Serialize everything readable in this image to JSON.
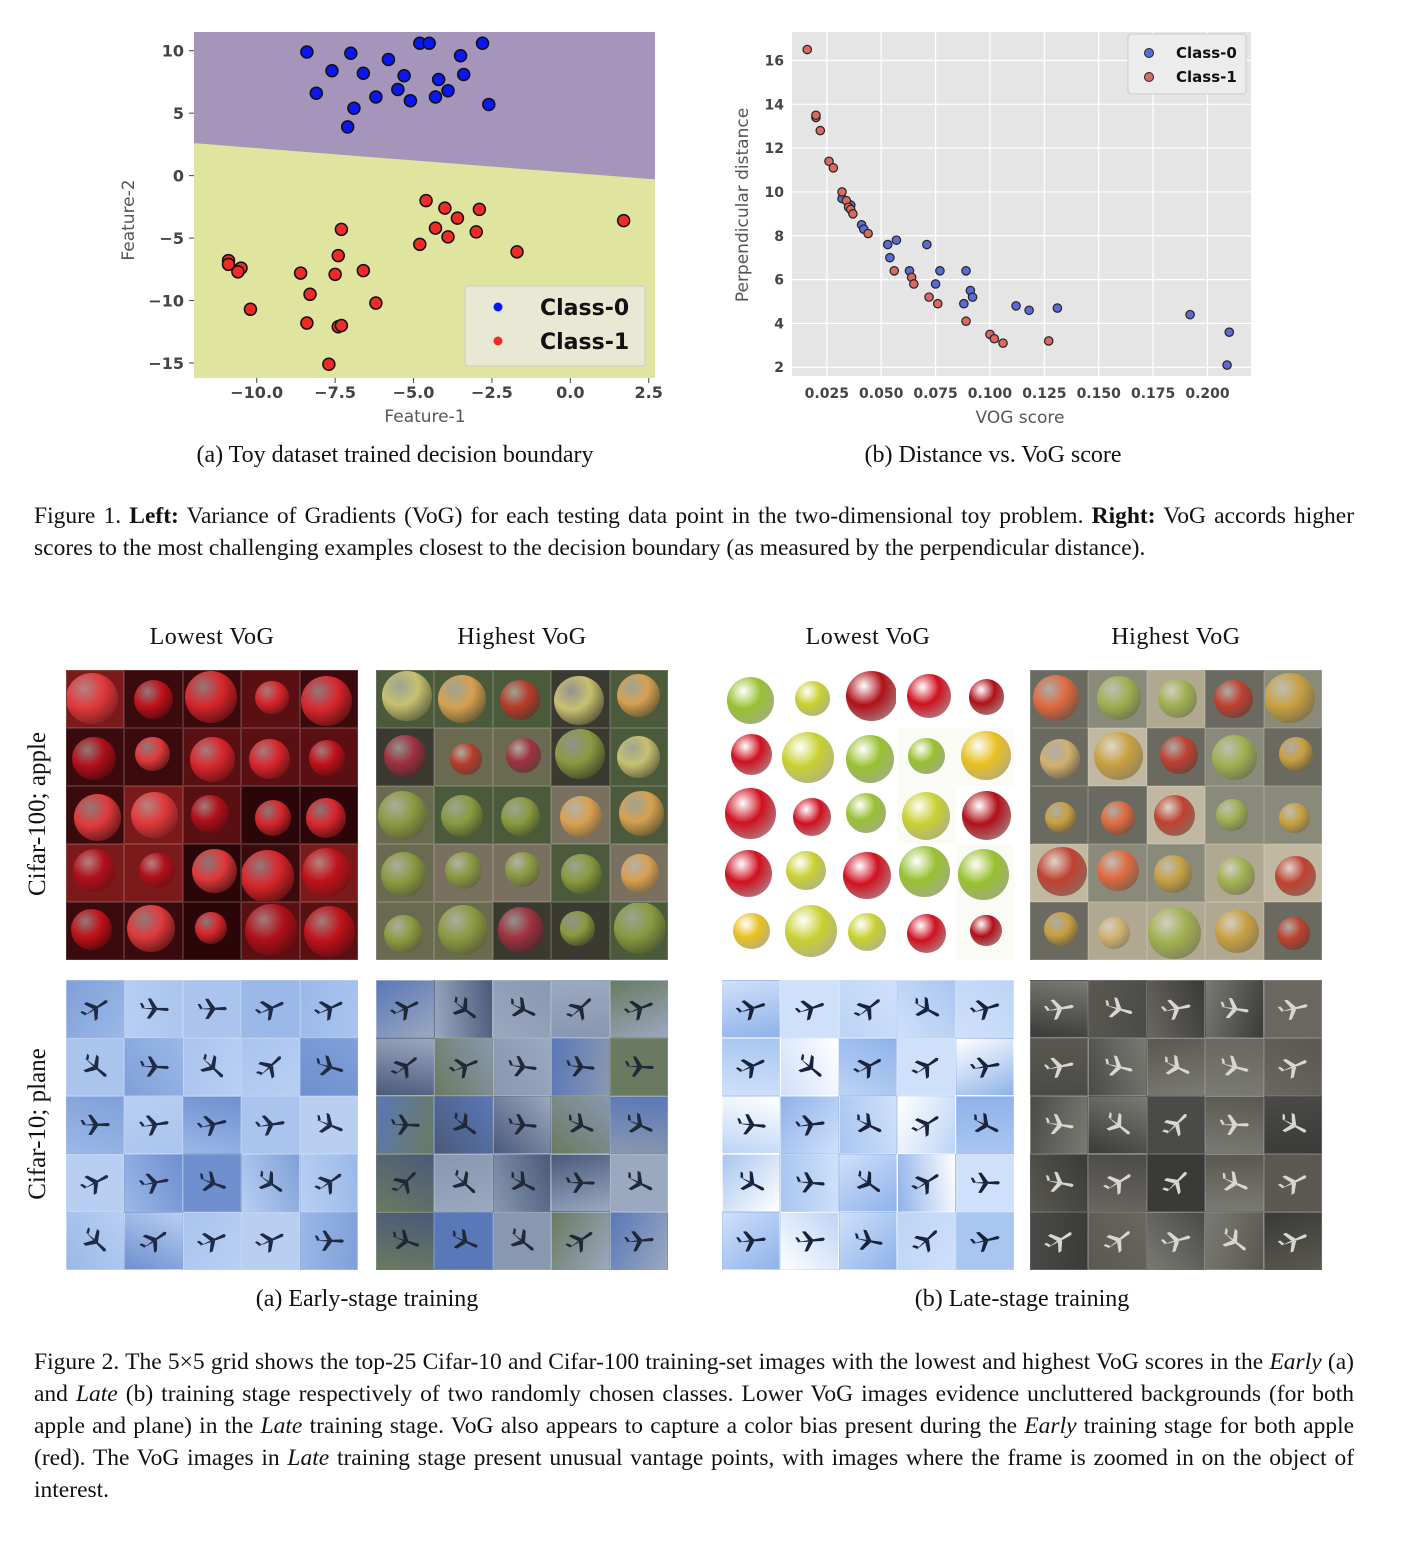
{
  "figure1": {
    "left_subcaption": "(a) Toy dataset trained decision boundary",
    "right_subcaption": "(b) Distance vs. VoG score",
    "caption_prefix": "Figure 1.",
    "caption_left_bold": "Left:",
    "caption_left_text": "Variance of Gradients (VoG) for each testing data point in the two-dimensional toy problem.",
    "caption_right_bold": "Right:",
    "caption_right_text": "VoG accords higher scores to the most challenging examples closest to the decision boundary (as measured by the perpendicular distance)."
  },
  "chart_data": [
    {
      "type": "scatter",
      "title": "",
      "xlabel": "Feature-1",
      "ylabel": "Feature-2",
      "xlim": [
        -12,
        2.7
      ],
      "ylim": [
        -16.2,
        11.5
      ],
      "xticks": [
        -10.0,
        -7.5,
        -5.0,
        -2.5,
        0.0,
        2.5
      ],
      "xtick_labels": [
        "−10.0",
        "−7.5",
        "−5.0",
        "−2.5",
        "0.0",
        "2.5"
      ],
      "yticks": [
        10,
        5,
        0,
        -5,
        -10,
        -15
      ],
      "ytick_labels": [
        "10",
        "5",
        "0",
        "−5",
        "−10",
        "−15"
      ],
      "decision_boundary": {
        "x": [
          -12,
          2.7
        ],
        "y": [
          2.6,
          -0.3
        ]
      },
      "region_colors": {
        "upper": "#a595bb",
        "lower": "#dfe49e"
      },
      "legend": {
        "position": "bottom-right",
        "entries": [
          "Class-0",
          "Class-1"
        ]
      },
      "series": [
        {
          "name": "Class-0",
          "color": "#0a17f5",
          "points": [
            [
              -8.4,
              9.9
            ],
            [
              -7.0,
              9.8
            ],
            [
              -5.8,
              9.3
            ],
            [
              -4.8,
              10.6
            ],
            [
              -4.5,
              10.6
            ],
            [
              -3.5,
              9.6
            ],
            [
              -2.8,
              10.6
            ],
            [
              -7.6,
              8.4
            ],
            [
              -6.6,
              8.2
            ],
            [
              -5.3,
              8.0
            ],
            [
              -4.2,
              7.7
            ],
            [
              -3.4,
              8.1
            ],
            [
              -8.1,
              6.6
            ],
            [
              -6.2,
              6.3
            ],
            [
              -5.5,
              6.9
            ],
            [
              -4.3,
              6.3
            ],
            [
              -3.9,
              6.8
            ],
            [
              -2.6,
              5.7
            ],
            [
              -6.9,
              5.4
            ],
            [
              -7.1,
              3.9
            ],
            [
              -5.1,
              6.0
            ]
          ]
        },
        {
          "name": "Class-1",
          "color": "#ee2b24",
          "points": [
            [
              -10.9,
              -6.8
            ],
            [
              -10.9,
              -7.1
            ],
            [
              -10.5,
              -7.4
            ],
            [
              -10.6,
              -7.7
            ],
            [
              -8.6,
              -7.8
            ],
            [
              -7.5,
              -7.9
            ],
            [
              -6.6,
              -7.6
            ],
            [
              -8.3,
              -9.5
            ],
            [
              -7.3,
              -4.3
            ],
            [
              -7.4,
              -6.4
            ],
            [
              -6.2,
              -10.2
            ],
            [
              -10.2,
              -10.7
            ],
            [
              -8.4,
              -11.8
            ],
            [
              -7.4,
              -12.1
            ],
            [
              -7.3,
              -12.0
            ],
            [
              -7.7,
              -15.1
            ],
            [
              -4.6,
              -2.0
            ],
            [
              -4.0,
              -2.6
            ],
            [
              -3.6,
              -3.4
            ],
            [
              -2.9,
              -2.7
            ],
            [
              -4.3,
              -4.2
            ],
            [
              -3.9,
              -4.9
            ],
            [
              -3.0,
              -4.5
            ],
            [
              -4.8,
              -5.5
            ],
            [
              -1.7,
              -6.1
            ],
            [
              1.7,
              -3.6
            ]
          ]
        }
      ]
    },
    {
      "type": "scatter",
      "title": "",
      "xlabel": "VOG score",
      "ylabel": "Perpendicular distance",
      "xlim": [
        0.009,
        0.22
      ],
      "ylim": [
        1.6,
        17.3
      ],
      "xticks": [
        0.025,
        0.05,
        0.075,
        0.1,
        0.125,
        0.15,
        0.175,
        0.2
      ],
      "xtick_labels": [
        "0.025",
        "0.050",
        "0.075",
        "0.100",
        "0.125",
        "0.150",
        "0.175",
        "0.200"
      ],
      "yticks": [
        2,
        4,
        6,
        8,
        10,
        12,
        14,
        16
      ],
      "ytick_labels": [
        "2",
        "4",
        "6",
        "8",
        "10",
        "12",
        "14",
        "16"
      ],
      "grid": true,
      "legend": {
        "position": "top-right",
        "entries": [
          "Class-0",
          "Class-1"
        ]
      },
      "series": [
        {
          "name": "Class-0",
          "color": "#5b6bd6",
          "points": [
            [
              0.032,
              9.7
            ],
            [
              0.036,
              9.4
            ],
            [
              0.041,
              8.5
            ],
            [
              0.042,
              8.3
            ],
            [
              0.053,
              7.6
            ],
            [
              0.057,
              7.8
            ],
            [
              0.054,
              7.0
            ],
            [
              0.063,
              6.4
            ],
            [
              0.071,
              7.6
            ],
            [
              0.075,
              5.8
            ],
            [
              0.077,
              6.4
            ],
            [
              0.088,
              4.9
            ],
            [
              0.089,
              6.4
            ],
            [
              0.091,
              5.5
            ],
            [
              0.092,
              5.2
            ],
            [
              0.112,
              4.8
            ],
            [
              0.118,
              4.6
            ],
            [
              0.131,
              4.7
            ],
            [
              0.192,
              4.4
            ],
            [
              0.21,
              3.6
            ],
            [
              0.209,
              2.1
            ]
          ]
        },
        {
          "name": "Class-1",
          "color": "#d86a63",
          "points": [
            [
              0.016,
              16.5
            ],
            [
              0.02,
              13.4
            ],
            [
              0.02,
              13.5
            ],
            [
              0.022,
              12.8
            ],
            [
              0.026,
              11.4
            ],
            [
              0.028,
              11.1
            ],
            [
              0.032,
              10.0
            ],
            [
              0.034,
              9.6
            ],
            [
              0.035,
              9.3
            ],
            [
              0.036,
              9.2
            ],
            [
              0.037,
              9.0
            ],
            [
              0.044,
              8.1
            ],
            [
              0.056,
              6.4
            ],
            [
              0.064,
              6.1
            ],
            [
              0.065,
              5.8
            ],
            [
              0.072,
              5.2
            ],
            [
              0.076,
              4.9
            ],
            [
              0.089,
              4.1
            ],
            [
              0.1,
              3.5
            ],
            [
              0.102,
              3.3
            ],
            [
              0.106,
              3.1
            ],
            [
              0.127,
              3.2
            ]
          ]
        }
      ]
    }
  ],
  "figure2": {
    "col_headings": [
      "Lowest VoG",
      "Highest VoG",
      "Lowest VoG",
      "Highest VoG"
    ],
    "row_labels": [
      "Cifar-100; apple",
      "Cifar-10; plane"
    ],
    "left_subcaption": "(a) Early-stage training",
    "right_subcaption": "(b) Late-stage training",
    "caption_prefix": "Figure 2.",
    "caption_p1": "The 5×5 grid shows the top-25 Cifar-10 and Cifar-100 training-set images with the lowest and highest VoG scores in the",
    "caption_early": "Early",
    "caption_p2": "(a) and",
    "caption_late": "Late",
    "caption_p3": "(b) training stage respectively of two randomly chosen classes. Lower VoG images evidence uncluttered backgrounds (for both apple and plane) in the",
    "caption_late2": "Late",
    "caption_p4": "training stage. VoG also appears to capture a color bias present during the",
    "caption_early2": "Early",
    "caption_p5": "training stage for both apple (red). The VoG images in",
    "caption_late3": "Late",
    "caption_p6": "training stage present unusual vantage points, with images where the frame is zoomed in on the object of interest."
  }
}
